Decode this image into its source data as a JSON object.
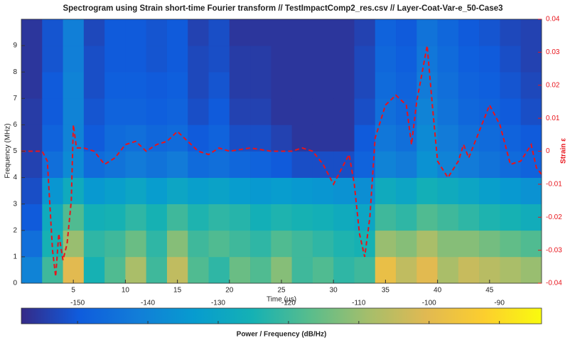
{
  "chart_data": {
    "type": "spectrogram",
    "title": "Spectrogram using Strain short-time Fourier transform //  TestImpactComp2_res.csv  // Layer-Coat-Var-e_50-Case3",
    "x_label": "Time (µs)",
    "y_label": "Frequency (MHz)",
    "y2_label": "Strain ε",
    "colorbar_label": "Power / Frequency (dB/Hz)",
    "colormap": "parula",
    "xlim": [
      0,
      50
    ],
    "xticks": [
      5,
      10,
      15,
      20,
      25,
      30,
      35,
      40,
      45
    ],
    "ylim": [
      0,
      10
    ],
    "yticks": [
      0,
      1,
      2,
      3,
      4,
      5,
      6,
      7,
      8,
      9
    ],
    "y2lim": [
      -0.04,
      0.04
    ],
    "y2ticks": [
      -0.04,
      -0.03,
      -0.02,
      -0.01,
      0,
      0.01,
      0.02,
      0.03,
      0.04
    ],
    "clim": [
      -158,
      -84
    ],
    "cticks": [
      -150,
      -140,
      -130,
      -120,
      -110,
      -100,
      -90
    ],
    "time_edges": [
      0,
      2,
      4,
      6,
      8,
      10,
      12,
      14,
      16,
      18,
      20,
      22,
      24,
      26,
      28,
      30,
      32,
      34,
      36,
      38,
      40,
      42,
      44,
      46,
      48,
      50
    ],
    "freq_edges": [
      0,
      1,
      2,
      3,
      4,
      5,
      6,
      7,
      8,
      9,
      10
    ],
    "z": [
      [
        -140,
        -120,
        -100,
        -125,
        -118,
        -108,
        -120,
        -105,
        -118,
        -122,
        -115,
        -118,
        -112,
        -120,
        -118,
        -122,
        -120,
        -98,
        -105,
        -100,
        -108,
        -104,
        -106,
        -108,
        -110
      ],
      [
        -145,
        -125,
        -110,
        -122,
        -120,
        -115,
        -122,
        -112,
        -120,
        -118,
        -120,
        -122,
        -118,
        -120,
        -122,
        -124,
        -125,
        -110,
        -112,
        -108,
        -112,
        -112,
        -114,
        -116,
        -118
      ],
      [
        -150,
        -128,
        -118,
        -126,
        -125,
        -122,
        -125,
        -120,
        -124,
        -122,
        -123,
        -126,
        -124,
        -125,
        -126,
        -128,
        -130,
        -120,
        -122,
        -118,
        -120,
        -122,
        -124,
        -125,
        -127
      ],
      [
        -152,
        -135,
        -128,
        -134,
        -132,
        -130,
        -133,
        -130,
        -132,
        -131,
        -133,
        -134,
        -133,
        -134,
        -135,
        -136,
        -137,
        -128,
        -130,
        -126,
        -128,
        -130,
        -132,
        -134,
        -136
      ],
      [
        -154,
        -145,
        -138,
        -146,
        -144,
        -142,
        -144,
        -142,
        -146,
        -145,
        -147,
        -148,
        -150,
        -152,
        -152,
        -152,
        -148,
        -140,
        -142,
        -136,
        -140,
        -142,
        -144,
        -146,
        -148
      ],
      [
        -155,
        -148,
        -140,
        -150,
        -146,
        -145,
        -147,
        -146,
        -150,
        -148,
        -152,
        -152,
        -154,
        -156,
        -156,
        -156,
        -150,
        -143,
        -145,
        -138,
        -142,
        -145,
        -146,
        -148,
        -150
      ],
      [
        -155,
        -150,
        -140,
        -151,
        -148,
        -148,
        -149,
        -148,
        -152,
        -150,
        -154,
        -154,
        -156,
        -156,
        -156,
        -156,
        -152,
        -145,
        -147,
        -140,
        -144,
        -147,
        -148,
        -150,
        -152
      ],
      [
        -156,
        -150,
        -140,
        -152,
        -149,
        -149,
        -150,
        -149,
        -153,
        -151,
        -155,
        -155,
        -156,
        -156,
        -156,
        -156,
        -153,
        -146,
        -148,
        -142,
        -145,
        -148,
        -149,
        -151,
        -153
      ],
      [
        -156,
        -151,
        -141,
        -152,
        -150,
        -150,
        -151,
        -150,
        -153,
        -152,
        -155,
        -155,
        -156,
        -156,
        -156,
        -156,
        -153,
        -147,
        -149,
        -143,
        -146,
        -149,
        -150,
        -152,
        -154
      ],
      [
        -156,
        -151,
        -141,
        -153,
        -150,
        -150,
        -151,
        -150,
        -154,
        -152,
        -156,
        -156,
        -156,
        -156,
        -156,
        -156,
        -154,
        -148,
        -150,
        -144,
        -147,
        -150,
        -151,
        -153,
        -154
      ]
    ],
    "strain": {
      "color": "#e8141b",
      "x": [
        0,
        1,
        2,
        2.5,
        3,
        3.3,
        3.6,
        4,
        4.4,
        4.8,
        5,
        5.3,
        6,
        7,
        8,
        9,
        10,
        11,
        12,
        13,
        14,
        15,
        16,
        17,
        18,
        19,
        20,
        22,
        24,
        26,
        27,
        28,
        29,
        30,
        31,
        31.5,
        32,
        32.5,
        33,
        33.5,
        34,
        35,
        36,
        37,
        37.5,
        38,
        39,
        39.5,
        40,
        41,
        42,
        42.5,
        43,
        44,
        45,
        46,
        47,
        48,
        49,
        49.5,
        50
      ],
      "values": [
        0,
        0,
        0,
        -0.003,
        -0.03,
        -0.038,
        -0.025,
        -0.033,
        -0.028,
        -0.015,
        0.008,
        0.001,
        0.001,
        0,
        -0.004,
        -0.002,
        0.002,
        0.003,
        0,
        0.002,
        0.003,
        0.006,
        0.003,
        0,
        -0.001,
        0.001,
        0,
        0.001,
        0,
        0,
        0.001,
        0,
        -0.004,
        -0.01,
        -0.004,
        -0.001,
        -0.01,
        -0.025,
        -0.032,
        -0.02,
        0.004,
        0.014,
        0.017,
        0.014,
        0.002,
        0.015,
        0.032,
        0.014,
        -0.003,
        -0.008,
        -0.003,
        0.002,
        -0.002,
        0.006,
        0.014,
        0.008,
        -0.004,
        -0.003,
        0.002,
        -0.005,
        -0.007
      ]
    }
  }
}
